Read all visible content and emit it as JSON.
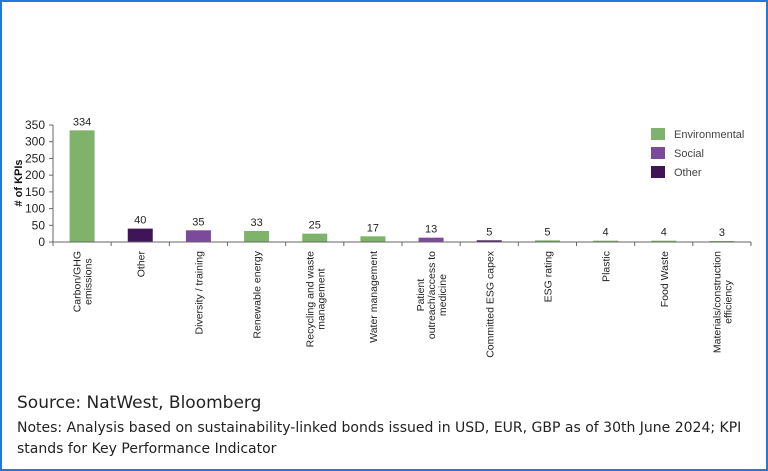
{
  "chart_data": {
    "type": "bar",
    "title": "",
    "xlabel": "",
    "ylabel": "# of KPIs",
    "ylim": [
      0,
      350
    ],
    "yticks": [
      0,
      50,
      100,
      150,
      200,
      250,
      300,
      350
    ],
    "grid": false,
    "legend_position": "top-right",
    "categories": [
      [
        "Carbon/GHG",
        "emissions"
      ],
      [
        "Other"
      ],
      [
        "Diversity / training"
      ],
      [
        "Renewable energy"
      ],
      [
        "Recycling and waste",
        "management"
      ],
      [
        "Water management"
      ],
      [
        "Patient",
        "outreach/access to",
        "medicine"
      ],
      [
        "Committed ESG capex"
      ],
      [
        "ESG rating"
      ],
      [
        "Plastic"
      ],
      [
        "Food Waste"
      ],
      [
        "Materials/construction",
        "efficiency"
      ]
    ],
    "values": [
      334,
      40,
      35,
      33,
      25,
      17,
      13,
      5,
      5,
      4,
      4,
      3
    ],
    "groups": [
      "Environmental",
      "Other",
      "Social",
      "Environmental",
      "Environmental",
      "Environmental",
      "Social",
      "Other",
      "Environmental",
      "Environmental",
      "Environmental",
      "Environmental"
    ],
    "legend": [
      {
        "name": "Environmental",
        "color": "#7fb36b"
      },
      {
        "name": "Social",
        "color": "#7b4a9a"
      },
      {
        "name": "Other",
        "color": "#3f1558"
      }
    ]
  },
  "footer": {
    "source": "Source: NatWest, Bloomberg",
    "notes": "Notes: Analysis based on sustainability-linked bonds issued in USD, EUR, GBP as of 30th June 2024; KPI stands for Key Performance Indicator"
  }
}
